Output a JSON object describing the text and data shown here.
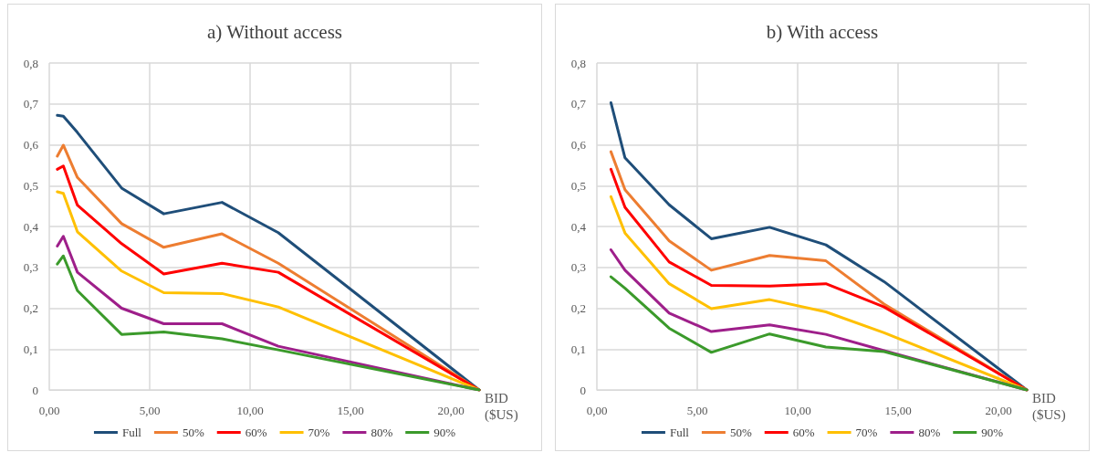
{
  "chart_data": [
    {
      "type": "line",
      "title": "a) Without access",
      "xlabel": "BID ($US)",
      "x": [
        0.4,
        0.7,
        1.4,
        3.6,
        5.7,
        8.6,
        11.4,
        21.4
      ],
      "xlim": [
        0,
        21.4
      ],
      "xticks": [
        {
          "value": 0,
          "label": "0,00"
        },
        {
          "value": 5,
          "label": "5,00"
        },
        {
          "value": 10,
          "label": "10,00"
        },
        {
          "value": 15,
          "label": "15,00"
        },
        {
          "value": 20,
          "label": "20,00"
        }
      ],
      "ylim": [
        0,
        0.8
      ],
      "yticks": [
        0,
        {
          "value": 0.1,
          "label": "0,1"
        },
        {
          "value": 0.2,
          "label": "0,2"
        },
        {
          "value": 0.3,
          "label": "0,3"
        },
        {
          "value": 0.4,
          "label": "0,4"
        },
        {
          "value": 0.5,
          "label": "0,5"
        },
        {
          "value": 0.6,
          "label": "0,6"
        },
        {
          "value": 0.7,
          "label": "0,7"
        },
        {
          "value": 0.8,
          "label": "0,8"
        }
      ],
      "grid": true,
      "legend": "bottom",
      "marker": "none",
      "line_style": "solid",
      "series": [
        {
          "name": "Full",
          "color": "#1f4e79",
          "values": [
            0.672,
            0.67,
            0.63,
            0.494,
            0.431,
            0.459,
            0.385,
            0
          ]
        },
        {
          "name": "50%",
          "color": "#ed7d31",
          "values": [
            0.572,
            0.599,
            0.52,
            0.407,
            0.349,
            0.382,
            0.31,
            0
          ]
        },
        {
          "name": "60%",
          "color": "#ff0000",
          "values": [
            0.54,
            0.548,
            0.452,
            0.358,
            0.284,
            0.31,
            0.288,
            0
          ]
        },
        {
          "name": "70%",
          "color": "#ffc000",
          "values": [
            0.485,
            0.481,
            0.387,
            0.291,
            0.238,
            0.236,
            0.203,
            0
          ]
        },
        {
          "name": "80%",
          "color": "#9e1f8a",
          "values": [
            0.352,
            0.376,
            0.288,
            0.2,
            0.162,
            0.162,
            0.107,
            0
          ]
        },
        {
          "name": "90%",
          "color": "#3b9a2b",
          "values": [
            0.308,
            0.328,
            0.243,
            0.136,
            0.142,
            0.125,
            0.098,
            0
          ]
        }
      ]
    },
    {
      "type": "line",
      "title": "b) With access",
      "xlabel": "BID ($US)",
      "x": [
        0.7,
        1.4,
        3.6,
        5.7,
        8.6,
        11.4,
        14.3,
        21.4
      ],
      "xlim": [
        0,
        21.4
      ],
      "xticks": [
        {
          "value": 0,
          "label": "0,00"
        },
        {
          "value": 5,
          "label": "5,00"
        },
        {
          "value": 10,
          "label": "10,00"
        },
        {
          "value": 15,
          "label": "15,00"
        },
        {
          "value": 20,
          "label": "20,00"
        }
      ],
      "ylim": [
        0,
        0.8
      ],
      "yticks": [
        0,
        {
          "value": 0.1,
          "label": "0,1"
        },
        {
          "value": 0.2,
          "label": "0,2"
        },
        {
          "value": 0.3,
          "label": "0,3"
        },
        {
          "value": 0.4,
          "label": "0,4"
        },
        {
          "value": 0.5,
          "label": "0,5"
        },
        {
          "value": 0.6,
          "label": "0,6"
        },
        {
          "value": 0.7,
          "label": "0,7"
        },
        {
          "value": 0.8,
          "label": "0,8"
        }
      ],
      "grid": true,
      "legend": "bottom",
      "marker": "none",
      "line_style": "solid",
      "series": [
        {
          "name": "Full",
          "color": "#1f4e79",
          "values": [
            0.703,
            0.568,
            0.453,
            0.37,
            0.398,
            0.355,
            0.265,
            0
          ]
        },
        {
          "name": "50%",
          "color": "#ed7d31",
          "values": [
            0.583,
            0.49,
            0.365,
            0.293,
            0.329,
            0.316,
            0.21,
            0
          ]
        },
        {
          "name": "60%",
          "color": "#ff0000",
          "values": [
            0.54,
            0.447,
            0.313,
            0.256,
            0.254,
            0.26,
            0.203,
            0
          ]
        },
        {
          "name": "70%",
          "color": "#ffc000",
          "values": [
            0.473,
            0.384,
            0.26,
            0.199,
            0.221,
            0.191,
            0.14,
            0
          ]
        },
        {
          "name": "80%",
          "color": "#9e1f8a",
          "values": [
            0.343,
            0.293,
            0.188,
            0.143,
            0.159,
            0.136,
            0.096,
            0
          ]
        },
        {
          "name": "90%",
          "color": "#3b9a2b",
          "values": [
            0.277,
            0.249,
            0.151,
            0.092,
            0.137,
            0.105,
            0.094,
            0
          ]
        }
      ]
    }
  ]
}
